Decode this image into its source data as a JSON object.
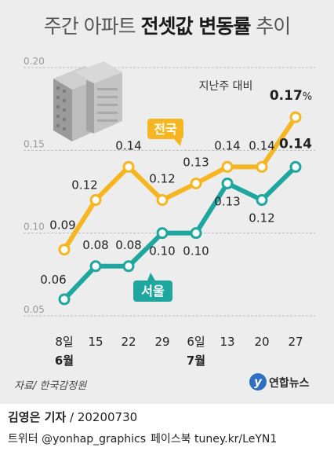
{
  "title": {
    "prefix": "주간 아파트 ",
    "bold": "전셋값 변동률",
    "suffix": " 추이"
  },
  "note": "지난주 대비",
  "source": "자료/ 한국감정원",
  "logo": {
    "mark": "y",
    "text": "연합뉴스"
  },
  "byline": {
    "name": "김영은 기자",
    "date": " / 20200730"
  },
  "social": {
    "twitter": "트위터 @yonhap_graphics",
    "facebook": "페이스북 tuney.kr/LeYN1"
  },
  "colors": {
    "national": "#f5b621",
    "seoul": "#1fa69f",
    "background": "#ededed"
  },
  "icon": "apartment-building-icon",
  "chart_data": {
    "type": "line",
    "title": "주간 아파트 전셋값 변동률 추이",
    "ylabel": "",
    "xlabel": "",
    "ylim": [
      0.05,
      0.2
    ],
    "yticks": [
      "0.20",
      "0.15",
      "0.10",
      "0.05"
    ],
    "ytick_values": [
      0.2,
      0.15,
      0.1,
      0.05
    ],
    "categories": [
      "8일",
      "15",
      "22",
      "29",
      "6일",
      "13",
      "20",
      "27"
    ],
    "month_labels": [
      {
        "index": 0,
        "text": "6월"
      },
      {
        "index": 4,
        "text": "7월"
      }
    ],
    "grid": true,
    "series": [
      {
        "name": "전국",
        "values": [
          0.09,
          0.12,
          0.14,
          0.12,
          0.13,
          0.14,
          0.14,
          0.17
        ],
        "labels": [
          "0.09",
          "0.12",
          "0.14",
          "0.12",
          "0.13",
          "0.14",
          "0.14",
          "0.17"
        ],
        "last_suffix": "%"
      },
      {
        "name": "서울",
        "values": [
          0.06,
          0.08,
          0.08,
          0.1,
          0.1,
          0.13,
          0.12,
          0.14
        ],
        "labels": [
          "0.06",
          "0.08",
          "0.08",
          "0.10",
          "0.10",
          "0.13",
          "0.12",
          "0.14"
        ],
        "last_suffix": ""
      }
    ]
  }
}
